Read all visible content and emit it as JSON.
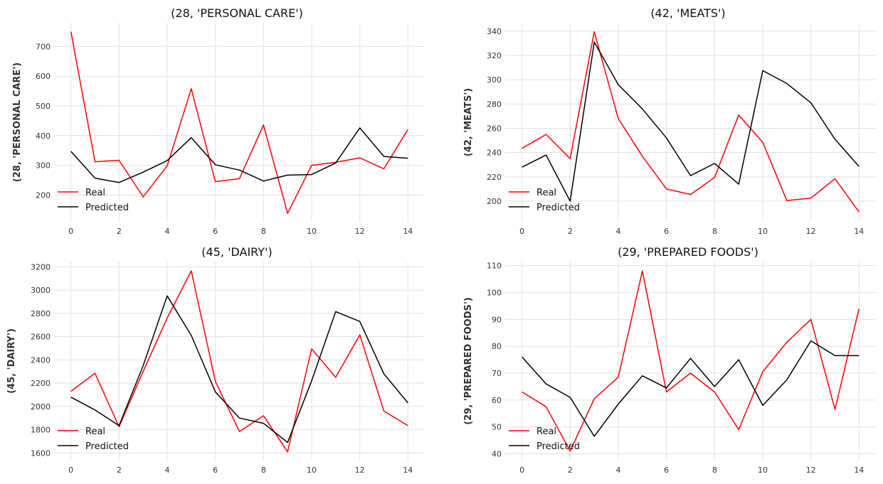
{
  "legend": {
    "real_label": "Real",
    "predicted_label": "Predicted"
  },
  "colors": {
    "real": "#ff0000",
    "predicted": "#000000",
    "grid": "#e0e0e0",
    "text": "#333333"
  },
  "chart_data": [
    {
      "type": "line",
      "title": "(28, 'PERSONAL CARE')",
      "xlabel": "",
      "ylabel": "(28, 'PERSONAL CARE')",
      "x": [
        0,
        1,
        2,
        3,
        4,
        5,
        6,
        7,
        8,
        9,
        10,
        11,
        12,
        13,
        14
      ],
      "xticks": [
        0,
        2,
        4,
        6,
        8,
        10,
        12,
        14
      ],
      "xlim": [
        -0.7,
        14.7
      ],
      "yticks": [
        200,
        300,
        400,
        500,
        600,
        700
      ],
      "ylim": [
        110,
        780
      ],
      "grid": true,
      "legend_position": "lower-left",
      "series": [
        {
          "name": "Real",
          "color": "#ff0000",
          "values": [
            750,
            312,
            317,
            194,
            298,
            558,
            245,
            255,
            436,
            138,
            300,
            310,
            325,
            288,
            421
          ]
        },
        {
          "name": "Predicted",
          "color": "#000000",
          "values": [
            347,
            257,
            242,
            277,
            316,
            393,
            302,
            284,
            247,
            267,
            269,
            308,
            426,
            330,
            324
          ]
        }
      ]
    },
    {
      "type": "line",
      "title": "(42, 'MEATS')",
      "xlabel": "",
      "ylabel": "(42, 'MEATS')",
      "x": [
        0,
        1,
        2,
        3,
        4,
        5,
        6,
        7,
        8,
        9,
        10,
        11,
        12,
        13,
        14
      ],
      "xticks": [
        0,
        2,
        4,
        6,
        8,
        10,
        12,
        14
      ],
      "xlim": [
        -0.7,
        14.7
      ],
      "yticks": [
        200,
        220,
        240,
        260,
        280,
        300,
        320,
        340
      ],
      "ylim": [
        183,
        347
      ],
      "grid": true,
      "legend_position": "lower-left",
      "series": [
        {
          "name": "Real",
          "color": "#ff0000",
          "values": [
            243.5,
            255,
            235,
            339.5,
            268,
            237,
            210,
            205.5,
            219.5,
            271,
            248.5,
            200.5,
            202.5,
            218.5,
            191
          ]
        },
        {
          "name": "Predicted",
          "color": "#000000",
          "values": [
            228,
            238,
            200,
            331,
            296,
            276,
            252,
            221,
            231,
            214,
            307.5,
            297,
            281,
            251,
            228.5
          ]
        }
      ]
    },
    {
      "type": "line",
      "title": "(45, 'DAIRY')",
      "xlabel": "",
      "ylabel": "(45, 'DAIRY')",
      "x": [
        0,
        1,
        2,
        3,
        4,
        5,
        6,
        7,
        8,
        9,
        10,
        11,
        12,
        13,
        14
      ],
      "xticks": [
        0,
        2,
        4,
        6,
        8,
        10,
        12,
        14
      ],
      "xlim": [
        -0.7,
        14.7
      ],
      "yticks": [
        1600,
        1800,
        2000,
        2200,
        2400,
        2600,
        2800,
        3000,
        3200
      ],
      "ylim": [
        1535,
        3245
      ],
      "grid": true,
      "legend_position": "lower-left",
      "series": [
        {
          "name": "Real",
          "color": "#ff0000",
          "values": [
            2130,
            2285,
            1825,
            2300,
            2760,
            3165,
            2215,
            1785,
            1920,
            1610,
            2495,
            2250,
            2615,
            1960,
            1835
          ]
        },
        {
          "name": "Predicted",
          "color": "#000000",
          "values": [
            2080,
            1970,
            1835,
            2350,
            2950,
            2610,
            2125,
            1900,
            1855,
            1690,
            2220,
            2815,
            2730,
            2280,
            2030
          ]
        }
      ]
    },
    {
      "type": "line",
      "title": "(29, 'PREPARED FOODS')",
      "xlabel": "",
      "ylabel": "(29, 'PREPARED FOODS')",
      "x": [
        0,
        1,
        2,
        3,
        4,
        5,
        6,
        7,
        8,
        9,
        10,
        11,
        12,
        13,
        14
      ],
      "xticks": [
        0,
        2,
        4,
        6,
        8,
        10,
        12,
        14
      ],
      "xlim": [
        -0.7,
        14.7
      ],
      "yticks": [
        40,
        50,
        60,
        70,
        80,
        90,
        100,
        110
      ],
      "ylim": [
        37.5,
        111.5
      ],
      "grid": true,
      "legend_position": "lower-left",
      "series": [
        {
          "name": "Real",
          "color": "#ff0000",
          "values": [
            63,
            57.5,
            41,
            60.5,
            68.5,
            108,
            63,
            70,
            63,
            49,
            70.5,
            81.5,
            90,
            56.5,
            94
          ]
        },
        {
          "name": "Predicted",
          "color": "#000000",
          "values": [
            76,
            66,
            61,
            46.5,
            58.5,
            69,
            64.5,
            75.5,
            65,
            75,
            58,
            67.5,
            82,
            76.5,
            76.5
          ]
        }
      ]
    }
  ]
}
